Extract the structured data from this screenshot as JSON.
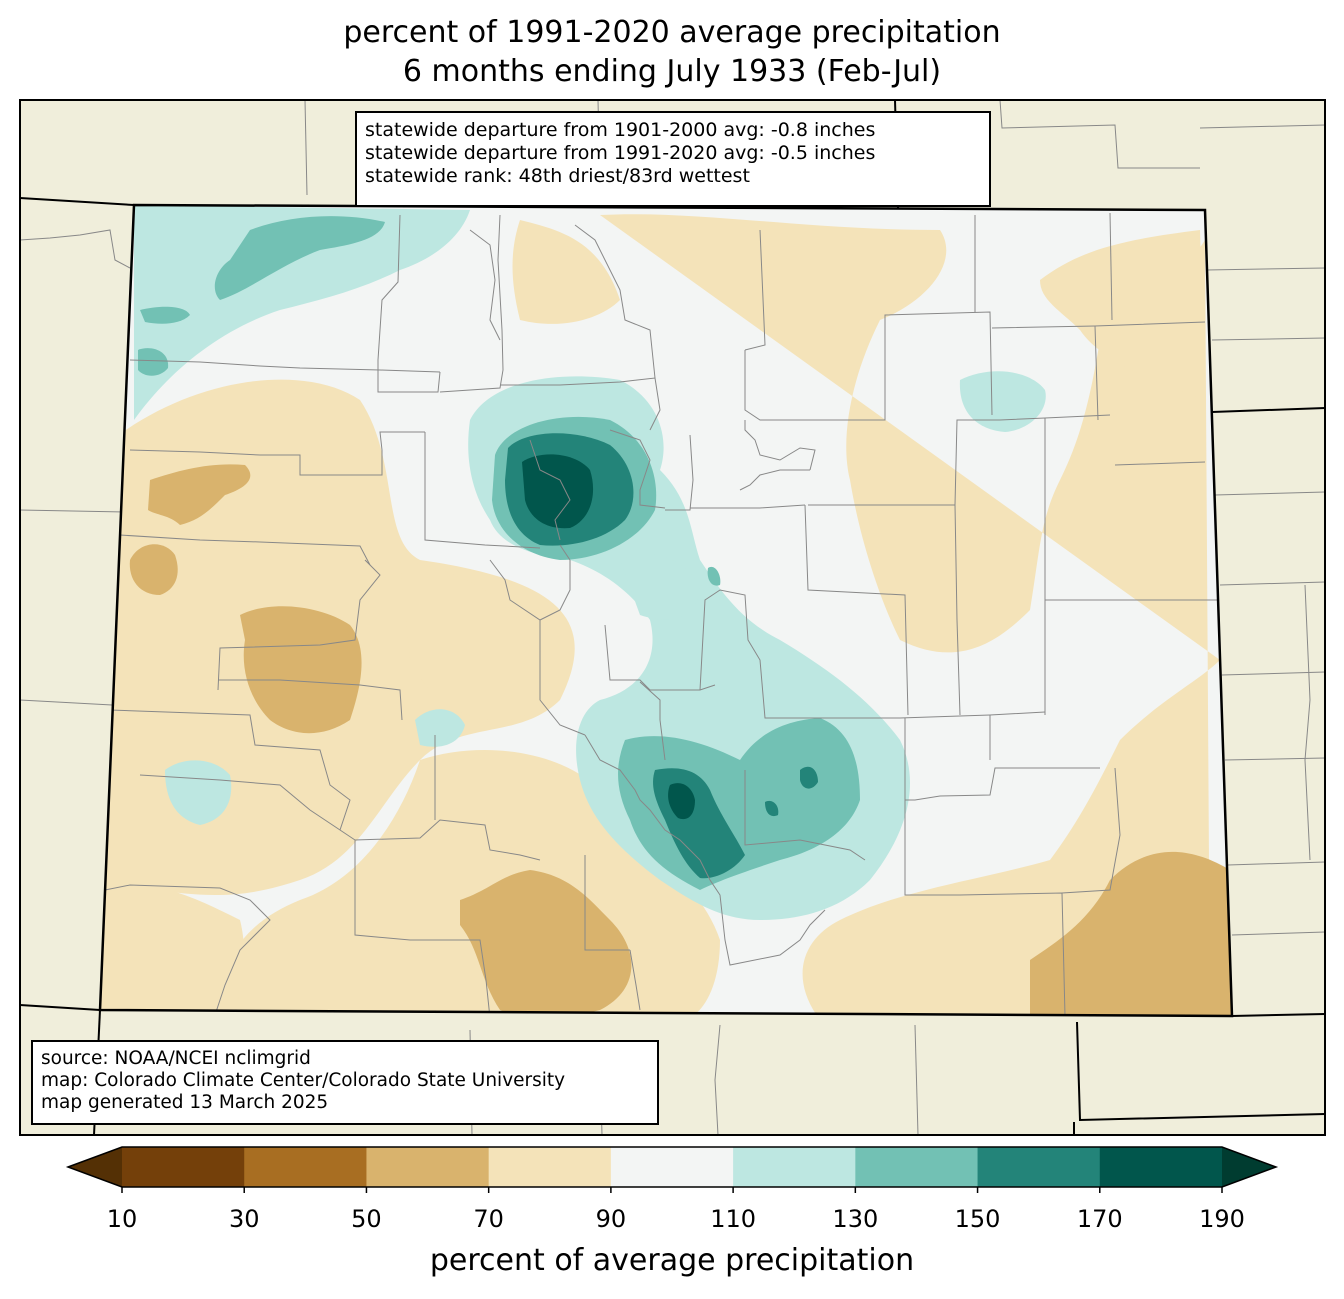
{
  "title": {
    "line1": "percent of 1991-2020 average precipitation",
    "line2": "6 months ending July 1933 (Feb-Jul)"
  },
  "stats_box": {
    "line1": "statewide departure from 1901-2000 avg: -0.8 inches",
    "line2": "statewide departure from 1991-2020 avg: -0.5 inches",
    "line3": "statewide rank: 48th driest/83rd wettest"
  },
  "source_box": {
    "line1": "source: NOAA/NCEI nclimgrid",
    "line2": "map: Colorado Climate Center/Colorado State University",
    "line3": "map generated 13 March 2025"
  },
  "colorbar": {
    "label": "percent of average precipitation",
    "ticks": [
      "10",
      "30",
      "50",
      "70",
      "90",
      "110",
      "130",
      "150",
      "170",
      "190"
    ],
    "colors": [
      "#543005",
      "#74400a",
      "#a86e22",
      "#d9b36d",
      "#f4e3b9",
      "#f3f5f4",
      "#bde7e1",
      "#72c1b4",
      "#238479",
      "#01564c",
      "#003c30"
    ]
  },
  "map_colors": {
    "background": "#f0eedb",
    "brown_light": "#f4e3b9",
    "brown_mid": "#d9b36d",
    "neutral": "#f3f5f4",
    "teal_light": "#bde7e1",
    "teal_mid": "#72c1b4",
    "teal_dark": "#238479",
    "teal_darkest": "#01564c"
  }
}
